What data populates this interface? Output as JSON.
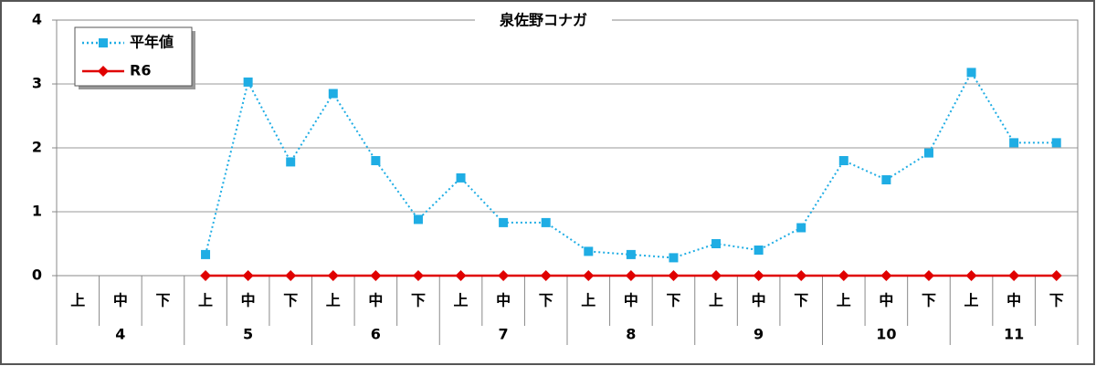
{
  "chart_data": {
    "type": "line",
    "title": "泉佐野コナガ",
    "categories": [
      "上",
      "中",
      "下",
      "上",
      "中",
      "下",
      "上",
      "中",
      "下",
      "上",
      "中",
      "下",
      "上",
      "中",
      "下",
      "上",
      "中",
      "下",
      "上",
      "中",
      "下",
      "上",
      "中",
      "下"
    ],
    "x_groups": [
      "4",
      "5",
      "6",
      "7",
      "8",
      "9",
      "10",
      "11"
    ],
    "series": [
      {
        "name": "平年値",
        "color": "#1fade4",
        "marker": "square",
        "dash": "dotted",
        "values": [
          null,
          null,
          null,
          0.33,
          3.03,
          1.78,
          2.85,
          1.8,
          0.88,
          1.53,
          0.83,
          0.83,
          0.38,
          0.33,
          0.28,
          0.5,
          0.4,
          0.75,
          1.8,
          1.5,
          1.92,
          3.18,
          2.08,
          2.08
        ]
      },
      {
        "name": "R6",
        "color": "#e00000",
        "marker": "diamond",
        "dash": "solid",
        "values": [
          null,
          null,
          null,
          0,
          0,
          0,
          0,
          0,
          0,
          0,
          0,
          0,
          0,
          0,
          0,
          0,
          0,
          0,
          0,
          0,
          0,
          0,
          0,
          0
        ]
      }
    ],
    "ylim": [
      0,
      4
    ],
    "yticks": [
      0,
      1,
      2,
      3,
      4
    ],
    "grid": true,
    "legend": "upper left"
  }
}
